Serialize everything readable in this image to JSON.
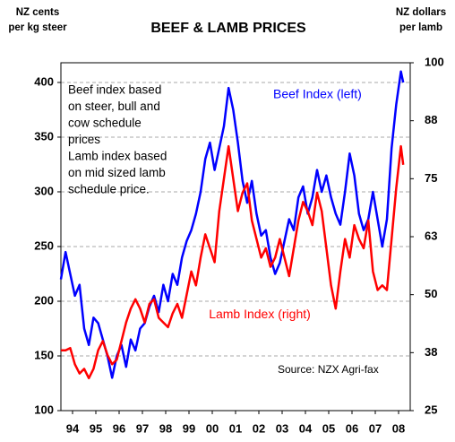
{
  "chart_data": {
    "type": "line",
    "title": "BEEF & LAMB PRICES",
    "y_label": [
      "NZ cents",
      "per kg steer"
    ],
    "y2_label": [
      "NZ dollars",
      "per lamb"
    ],
    "annotation": [
      "Beef index based",
      "on steer, bull and",
      "cow schedule",
      "prices",
      "Lamb index based",
      "on mid sized lamb",
      "schedule price."
    ],
    "source": "Source: NZX Agri-fax",
    "grid": true,
    "xlim": [
      1994,
      2009
    ],
    "xticks": [
      {
        "value": 1994.5,
        "label": "94"
      },
      {
        "value": 1995.5,
        "label": "95"
      },
      {
        "value": 1996.5,
        "label": "96"
      },
      {
        "value": 1997.5,
        "label": "97"
      },
      {
        "value": 1998.5,
        "label": "98"
      },
      {
        "value": 1999.5,
        "label": "99"
      },
      {
        "value": 2000.5,
        "label": "00"
      },
      {
        "value": 2001.5,
        "label": "01"
      },
      {
        "value": 2002.5,
        "label": "02"
      },
      {
        "value": 2003.5,
        "label": "03"
      },
      {
        "value": 2004.5,
        "label": "04"
      },
      {
        "value": 2005.5,
        "label": "05"
      },
      {
        "value": 2006.5,
        "label": "06"
      },
      {
        "value": 2007.5,
        "label": "07"
      },
      {
        "value": 2008.5,
        "label": "08"
      }
    ],
    "ylim": [
      100,
      418
    ],
    "yticks": [
      100,
      150,
      200,
      250,
      300,
      350,
      400
    ],
    "y2lim": [
      25,
      100
    ],
    "y2ticks": [
      25,
      {
        "value": 37.5,
        "label": "38"
      },
      50,
      {
        "value": 62.5,
        "label": "63"
      },
      75,
      {
        "value": 87.5,
        "label": "88"
      },
      100
    ],
    "x": [
      1994.0,
      1994.2,
      1994.4,
      1994.6,
      1994.8,
      1995.0,
      1995.2,
      1995.4,
      1995.6,
      1995.8,
      1996.0,
      1996.2,
      1996.4,
      1996.6,
      1996.8,
      1997.0,
      1997.2,
      1997.4,
      1997.6,
      1997.8,
      1998.0,
      1998.2,
      1998.4,
      1998.6,
      1998.8,
      1999.0,
      1999.2,
      1999.4,
      1999.6,
      1999.8,
      2000.0,
      2000.2,
      2000.4,
      2000.6,
      2000.8,
      2001.0,
      2001.2,
      2001.4,
      2001.6,
      2001.8,
      2002.0,
      2002.2,
      2002.4,
      2002.6,
      2002.8,
      2003.0,
      2003.2,
      2003.4,
      2003.6,
      2003.8,
      2004.0,
      2004.2,
      2004.4,
      2004.6,
      2004.8,
      2005.0,
      2005.2,
      2005.4,
      2005.6,
      2005.8,
      2006.0,
      2006.2,
      2006.4,
      2006.6,
      2006.8,
      2007.0,
      2007.2,
      2007.4,
      2007.6,
      2007.8,
      2008.0,
      2008.2,
      2008.4,
      2008.6,
      2008.7
    ],
    "series": [
      {
        "name": "Beef Index (left)",
        "color": "#0000ff",
        "axis": "y",
        "values": [
          220,
          245,
          225,
          205,
          215,
          175,
          160,
          185,
          180,
          165,
          150,
          130,
          150,
          160,
          140,
          165,
          155,
          175,
          180,
          195,
          205,
          190,
          215,
          200,
          225,
          215,
          240,
          255,
          265,
          280,
          300,
          330,
          345,
          320,
          340,
          360,
          395,
          375,
          345,
          310,
          290,
          310,
          280,
          260,
          265,
          240,
          225,
          235,
          255,
          275,
          265,
          295,
          305,
          280,
          295,
          320,
          300,
          315,
          295,
          280,
          270,
          300,
          335,
          315,
          280,
          265,
          275,
          300,
          275,
          250,
          275,
          340,
          380,
          410,
          400
        ]
      },
      {
        "name": "Lamb Index (right)",
        "color": "#ff0000",
        "axis": "y2",
        "values": [
          38,
          38,
          38.5,
          35,
          33,
          34,
          32,
          34,
          38,
          40,
          37,
          35,
          36,
          40,
          44,
          47,
          49,
          47,
          44,
          48,
          49,
          45,
          44,
          43,
          46,
          48,
          45,
          50,
          55,
          52,
          58,
          63,
          60,
          57,
          68,
          75,
          82,
          75,
          68,
          72,
          74,
          66,
          62,
          58,
          60,
          56,
          58,
          62,
          58,
          54,
          60,
          66,
          70,
          68,
          65,
          72,
          68,
          60,
          52,
          47,
          55,
          62,
          58,
          65,
          62,
          60,
          66,
          55,
          51,
          52,
          51,
          62,
          73,
          82,
          78
        ]
      }
    ]
  }
}
